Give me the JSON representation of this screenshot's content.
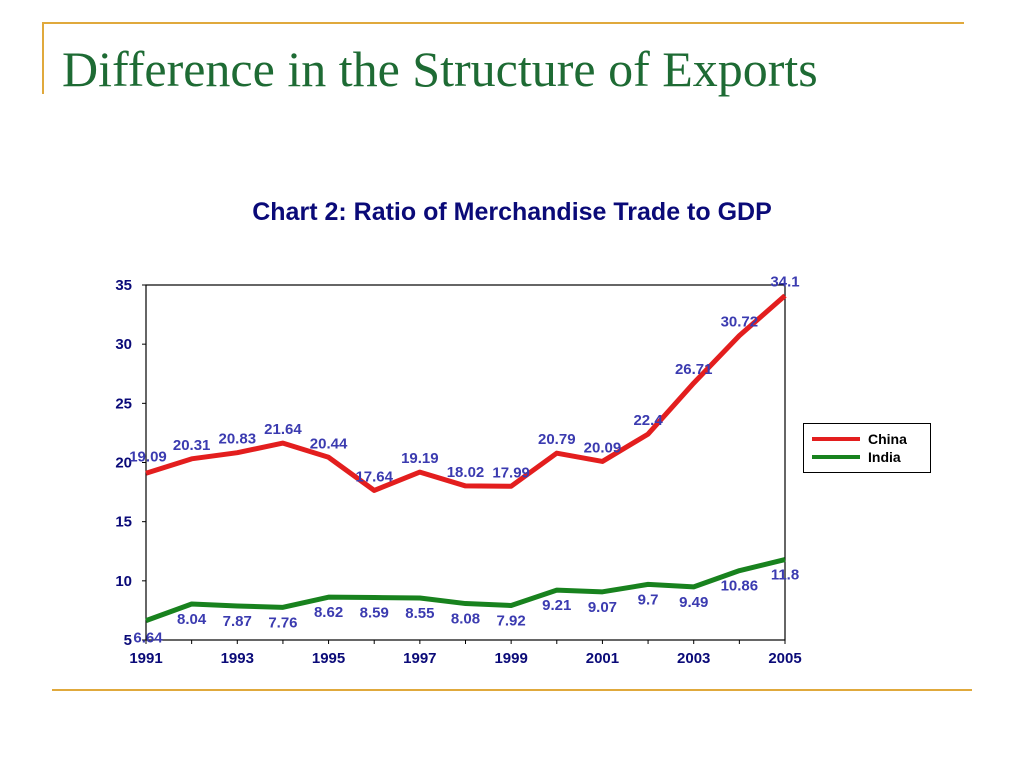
{
  "slide": {
    "title": "Difference in the Structure of Exports"
  },
  "chart_data": {
    "type": "line",
    "title": "Chart 2: Ratio of Merchandise Trade to GDP",
    "xlabel": "",
    "ylabel": "",
    "x": [
      1991,
      1992,
      1993,
      1994,
      1995,
      1996,
      1997,
      1998,
      1999,
      2000,
      2001,
      2002,
      2003,
      2004,
      2005
    ],
    "x_tick_labels": [
      "1991",
      "1993",
      "1995",
      "1997",
      "1999",
      "2001",
      "2003",
      "2005"
    ],
    "y_tick_labels": [
      "5",
      "10",
      "15",
      "20",
      "25",
      "30",
      "35"
    ],
    "ylim": [
      5,
      35
    ],
    "grid": false,
    "legend_position": "right",
    "series": [
      {
        "name": "China",
        "color": "#e31e1e",
        "values": [
          19.09,
          20.31,
          20.83,
          21.64,
          20.44,
          17.64,
          19.19,
          18.02,
          17.99,
          20.79,
          20.09,
          22.4,
          26.71,
          30.72,
          34.1
        ],
        "labels": [
          "19.09",
          "20.31",
          "20.83",
          "21.64",
          "20.44",
          "17.64",
          "19.19",
          "18.02",
          "17.99",
          "20.79",
          "20.09",
          "22.4",
          "26.71",
          "30.72",
          "34.1"
        ]
      },
      {
        "name": "India",
        "color": "#18821e",
        "values": [
          6.64,
          8.04,
          7.87,
          7.76,
          8.62,
          8.59,
          8.55,
          8.08,
          7.92,
          9.21,
          9.07,
          9.7,
          9.49,
          10.86,
          11.8
        ],
        "labels": [
          "6.64",
          "8.04",
          "7.87",
          "7.76",
          "8.62",
          "8.59",
          "8.55",
          "8.08",
          "7.92",
          "9.21",
          "9.07",
          "9.7",
          "9.49",
          "10.86",
          "11.8"
        ]
      }
    ],
    "label_color": "#3b3bb0"
  }
}
